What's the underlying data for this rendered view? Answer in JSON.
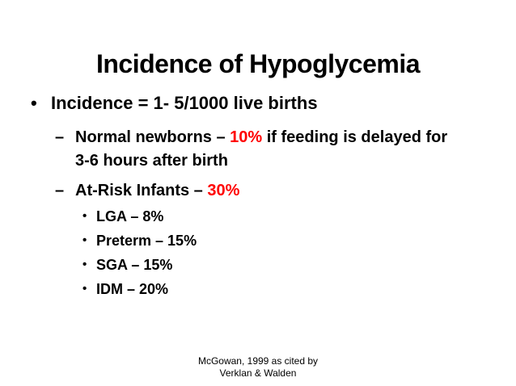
{
  "slide": {
    "title": "Incidence of Hypoglycemia",
    "colors": {
      "text": "#000000",
      "emphasis": "#ff0000",
      "background": "#ffffff"
    },
    "markers": {
      "level1": "•",
      "level2": "–",
      "level3": "•"
    },
    "bullets": {
      "main": "Incidence = 1- 5/1000 live births",
      "normal_newborns": {
        "prefix": "Normal newborns – ",
        "highlight": "10%",
        "suffix": " if feeding is delayed for",
        "wrap_line": "3-6 hours after birth"
      },
      "at_risk": {
        "prefix": "At-Risk Infants – ",
        "highlight": "30%"
      },
      "sub_items": [
        "LGA – 8%",
        "Preterm – 15%",
        "SGA – 15%",
        "IDM – 20%"
      ]
    },
    "footer": {
      "line1": "McGowan, 1999 as cited by",
      "line2": "Verklan & Walden"
    }
  }
}
